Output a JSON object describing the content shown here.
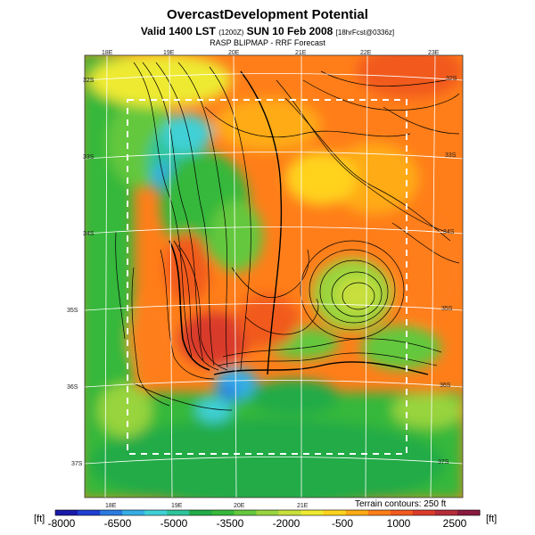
{
  "header": {
    "title": "OvercastDevelopment Potential",
    "subtitle_main": "Valid 1400 LST",
    "subtitle_code": "(1200Z)",
    "subtitle_date": "SUN 10 Feb 2008",
    "subtitle_init": "[18hrFcst@0336z]",
    "subtitle2": "RASP BLIPMAP - RRF Forecast"
  },
  "map": {
    "top_lon_labels": [
      "18E",
      "19E",
      "20E",
      "21E",
      "22E",
      "23E"
    ],
    "bottom_lon_labels": [
      "18E",
      "19E",
      "20E",
      "21E"
    ],
    "left_lat_labels": [
      "32S",
      "33S",
      "34S",
      "35S",
      "36S",
      "37S"
    ],
    "right_lat_labels": [
      "32S",
      "33S",
      "34S",
      "35S",
      "36S",
      "37S"
    ],
    "contour_note": "Terrain contours: 250 ft",
    "grid_color": "#ffffff",
    "boundary_style": "dashed white rectangle"
  },
  "colorbar": {
    "unit_left": "[ft]",
    "unit_right": "[ft]",
    "tick_labels": [
      "-8000",
      "-6500",
      "-5000",
      "-3500",
      "-2000",
      "-500",
      "1000",
      "2500"
    ],
    "colors": [
      "#1a1aa8",
      "#1f3fd0",
      "#2a7be0",
      "#35aee6",
      "#3fd0d6",
      "#2ec39a",
      "#22ab47",
      "#36b83a",
      "#64c83c",
      "#98d43e",
      "#c8df3c",
      "#eeea32",
      "#ffd21e",
      "#ffab15",
      "#ff7e1a",
      "#f15a1f",
      "#d93b2b",
      "#b52b3a",
      "#8a1a3e"
    ]
  }
}
